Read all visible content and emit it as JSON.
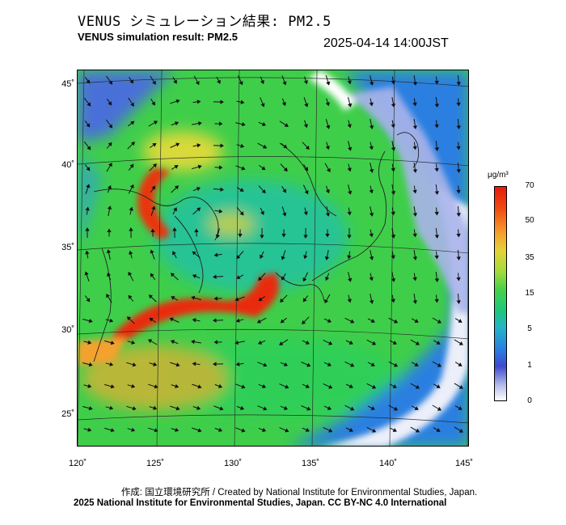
{
  "title_jp": "VENUS シミュレーション結果: PM2.5",
  "title_en": "VENUS simulation result: PM2.5",
  "timestamp": "2025-04-14 14:00JST",
  "lat_labels": [
    "45˚",
    "40˚",
    "35˚",
    "30˚",
    "25˚"
  ],
  "lon_labels": [
    "120˚",
    "125˚",
    "130˚",
    "135˚",
    "140˚",
    "145˚"
  ],
  "colorbar": {
    "unit": "μg/m³",
    "ticks": [
      "70",
      "50",
      "35",
      "15",
      "5",
      "1",
      "0"
    ]
  },
  "credit_line_1": "作成: 国立環境研究所 / Created by National Institute for Environmental Studies, Japan.",
  "credit_line_2": "2025 National Institute for Environmental Studies, Japan. CC BY-NC 4.0 International",
  "colors": {
    "high": "#e8190c",
    "moderate": "#3fce4a",
    "low": "#2a7fe0",
    "clean": "#ffffff"
  }
}
